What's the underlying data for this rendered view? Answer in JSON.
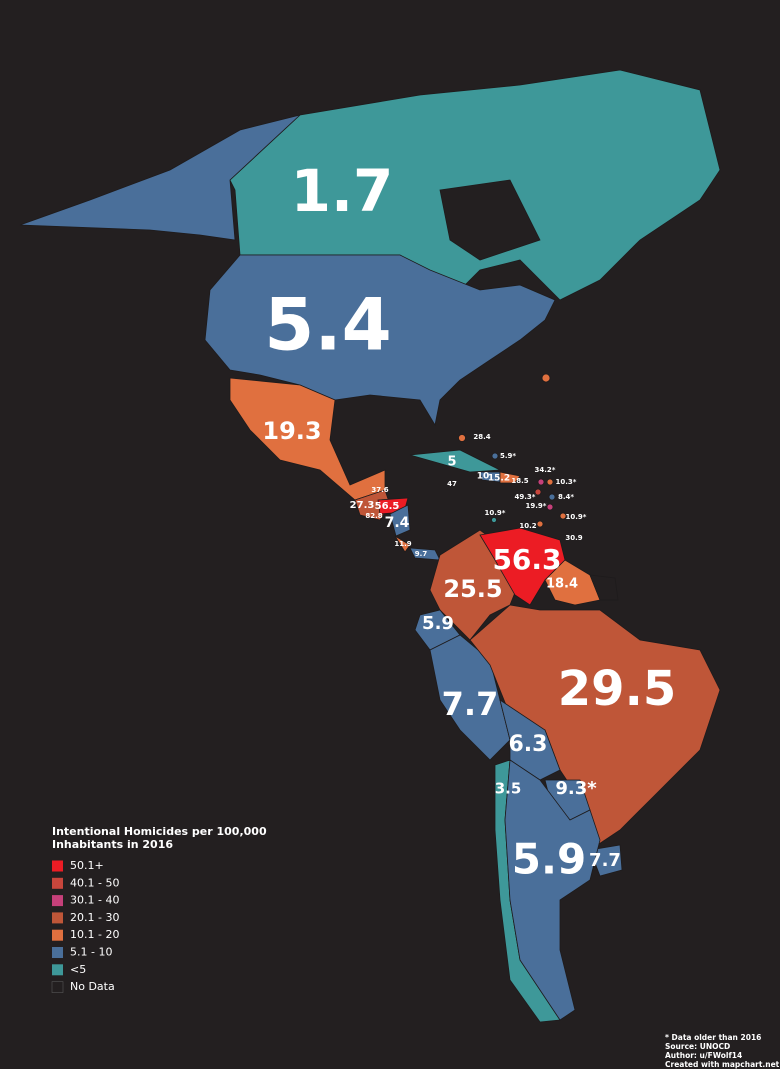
{
  "legend": {
    "title": [
      "Intentional Homicides per 100,000",
      "Inhabitants in 2016"
    ],
    "items": [
      {
        "label": "50.1+",
        "color": "#ec1c24"
      },
      {
        "label": "40.1 - 50",
        "color": "#c8463c"
      },
      {
        "label": "30.1 - 40",
        "color": "#c6407a"
      },
      {
        "label": "20.1 - 30",
        "color": "#bf5638"
      },
      {
        "label": "10.1 - 20",
        "color": "#e0703f"
      },
      {
        "label": "5.1 - 10",
        "color": "#4a6f9a"
      },
      {
        "label": "<5",
        "color": "#3e9899"
      },
      {
        "label": "No Data",
        "color": "#231f20"
      }
    ]
  },
  "labels": [
    "1.7",
    "5.4",
    "19.3",
    "5",
    "28.4",
    "5.9*",
    "34.2*",
    "10.3*",
    "10",
    "15.2",
    "18.5",
    "47",
    "8.4*",
    "49.3*",
    "19.9*",
    "10.9*",
    "10.2",
    "30.9",
    "10.9*",
    "37.6",
    "27.3",
    "56.5",
    "82.8",
    "7.4",
    "11.9",
    "9.7",
    "56.3",
    "25.5",
    "18.4",
    "5.9",
    "29.5",
    "7.7",
    "6.3",
    "3.5",
    "9.3*",
    "5.9",
    "7.7"
  ],
  "notes": [
    "* Data older than 2016",
    "Source: UNOCD",
    "Author: u/FWolf14",
    "Created with mapchart.net ©"
  ]
}
